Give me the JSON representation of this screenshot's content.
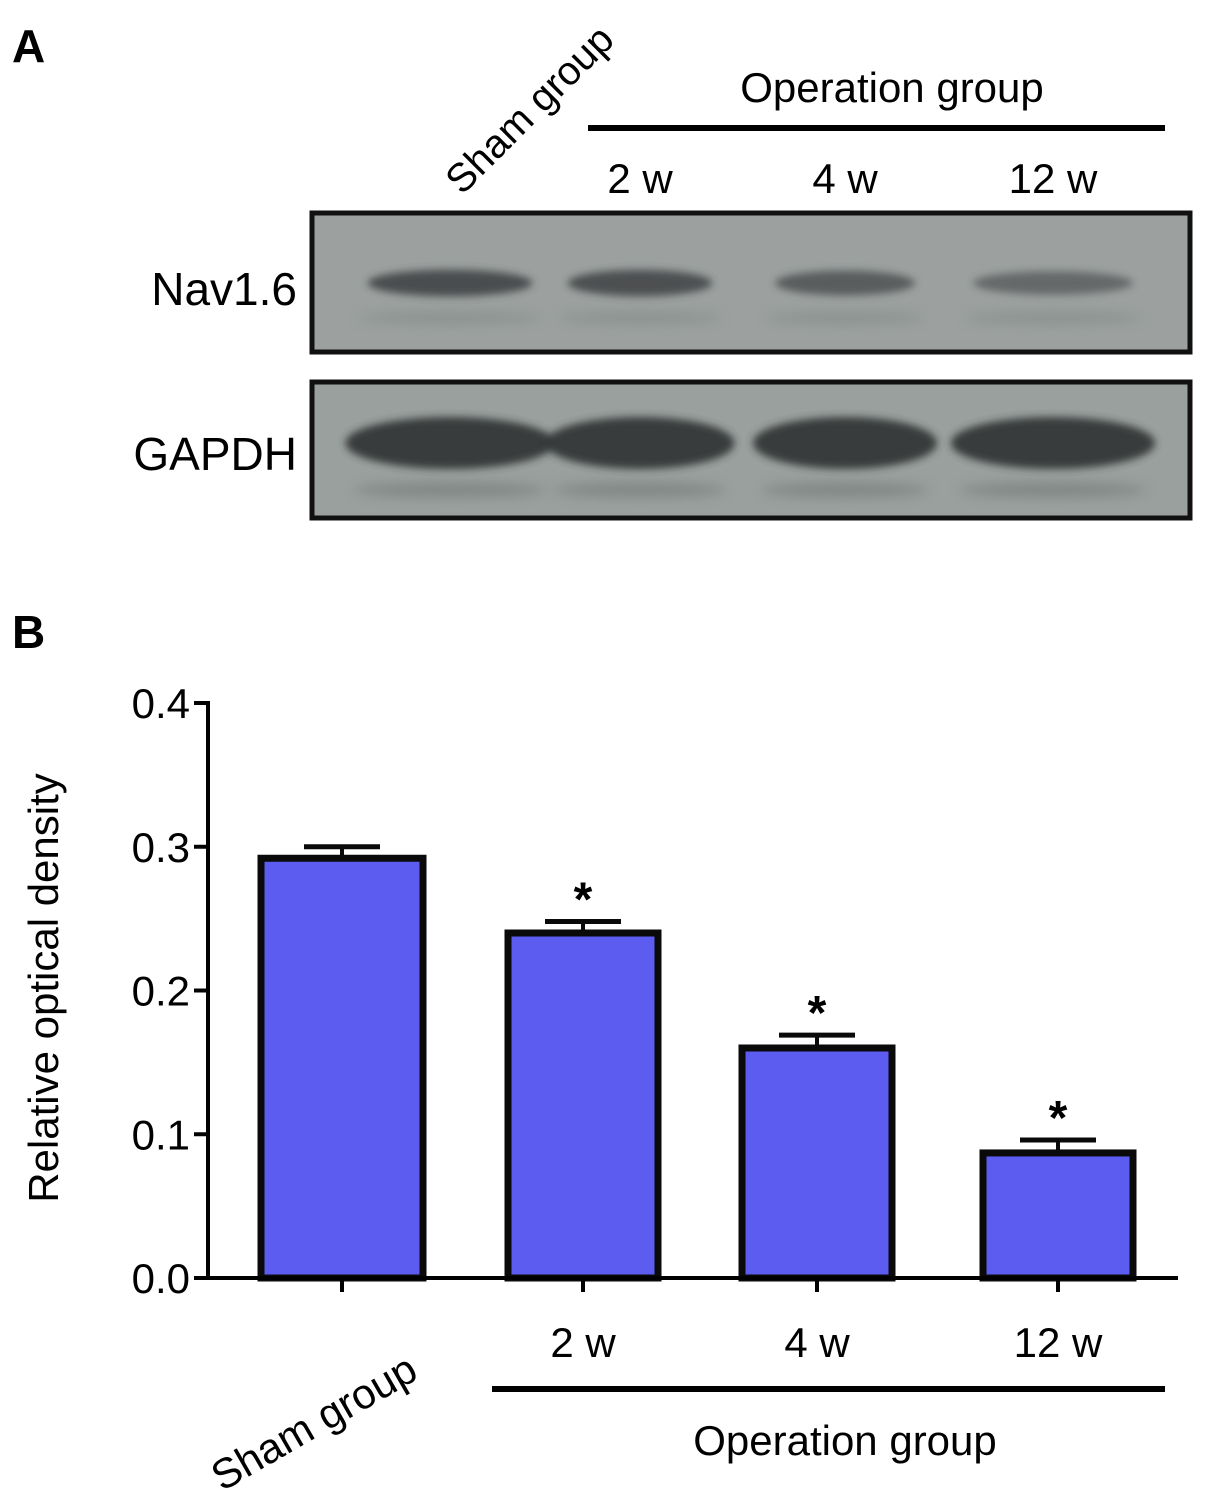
{
  "panel_a": {
    "label": "A",
    "sham_label": "Sham group",
    "operation_label": "Operation group",
    "lanes": [
      "2 w",
      "4 w",
      "12 w"
    ],
    "rows": [
      {
        "name": "Nav1.6",
        "band_intensities": [
          0.85,
          0.8,
          0.62,
          0.45
        ]
      },
      {
        "name": "GAPDH",
        "band_intensities": [
          1.0,
          1.0,
          1.0,
          1.0
        ]
      }
    ],
    "colors": {
      "membrane": "#9aa09e",
      "band": "#3b3e40",
      "frame": "#111111"
    }
  },
  "chart_data": {
    "type": "bar",
    "panel_label": "B",
    "categories": [
      "Sham group",
      "2 w",
      "4 w",
      "12 w"
    ],
    "values": [
      0.292,
      0.24,
      0.16,
      0.087
    ],
    "errors": [
      0.008,
      0.008,
      0.009,
      0.009
    ],
    "significance": [
      "",
      "*",
      "*",
      "*"
    ],
    "ylabel": "Relative optical density",
    "xlabel": "",
    "group_label": "Operation group",
    "ylim": [
      0.0,
      0.4
    ],
    "yticks": [
      "0.0",
      "0.1",
      "0.2",
      "0.3",
      "0.4"
    ],
    "grid": false,
    "bar_color": "#5c5cf0",
    "edge_color": "#0a0a0a"
  }
}
